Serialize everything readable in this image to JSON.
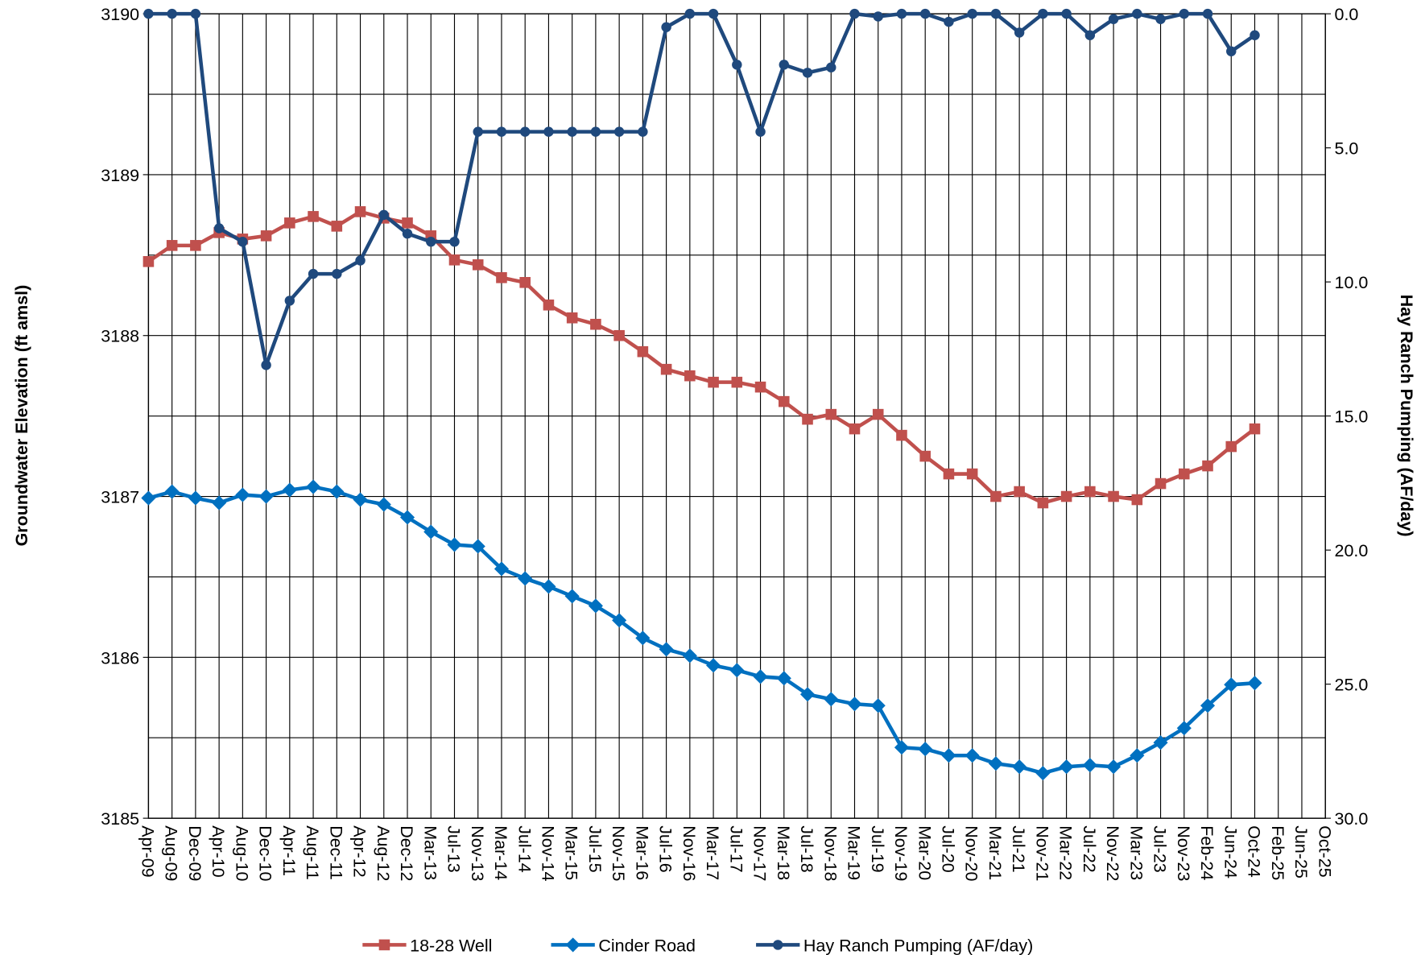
{
  "chart_data": {
    "type": "line",
    "ylabel": "Groundwater Elevation (ft amsl)",
    "y2label": "Hay Ranch Pumping (AF/day)",
    "categories": [
      "Apr-09",
      "Aug-09",
      "Dec-09",
      "Apr-10",
      "Aug-10",
      "Dec-10",
      "Apr-11",
      "Aug-11",
      "Dec-11",
      "Apr-12",
      "Aug-12",
      "Dec-12",
      "Mar-13",
      "Jul-13",
      "Nov-13",
      "Mar-14",
      "Jul-14",
      "Nov-14",
      "Mar-15",
      "Jul-15",
      "Nov-15",
      "Mar-16",
      "Jul-16",
      "Nov-16",
      "Mar-17",
      "Jul-17",
      "Nov-17",
      "Mar-18",
      "Jul-18",
      "Nov-18",
      "Mar-19",
      "Jul-19",
      "Nov-19",
      "Mar-20",
      "Jul-20",
      "Nov-20",
      "Mar-21",
      "Jul-21",
      "Nov-21",
      "Mar-22",
      "Jul-22",
      "Nov-22",
      "Mar-23",
      "Jul-23",
      "Nov-23",
      "Feb-24",
      "Jun-24",
      "Oct-24",
      "Feb-25",
      "Jun-25",
      "Oct-25"
    ],
    "series": [
      {
        "name": "18-28 Well",
        "color": "#c0504d",
        "marker": "square",
        "values": [
          3188.46,
          3188.56,
          3188.56,
          3188.64,
          3188.6,
          3188.62,
          3188.7,
          3188.74,
          3188.68,
          3188.77,
          3188.73,
          3188.7,
          3188.62,
          3188.47,
          3188.44,
          3188.36,
          3188.33,
          3188.19,
          3188.11,
          3188.07,
          3188.0,
          3187.9,
          3187.79,
          3187.75,
          3187.71,
          3187.71,
          3187.68,
          3187.59,
          3187.48,
          3187.51,
          3187.42,
          3187.51,
          3187.38,
          3187.25,
          3187.14,
          3187.14,
          3187.0,
          3187.03,
          3186.96,
          3187.0,
          3187.03,
          3187.0,
          3186.98,
          3187.08,
          3187.14,
          3187.19,
          3187.31,
          3187.42,
          null,
          null,
          null
        ]
      },
      {
        "name": "Cinder Road",
        "color": "#0070c0",
        "marker": "diamond",
        "values": [
          3186.99,
          3187.03,
          3186.99,
          3186.96,
          3187.01,
          3187.0,
          3187.04,
          3187.06,
          3187.03,
          3186.98,
          3186.95,
          3186.87,
          3186.78,
          3186.7,
          3186.69,
          3186.55,
          3186.49,
          3186.44,
          3186.38,
          3186.32,
          3186.23,
          3186.12,
          3186.05,
          3186.01,
          3185.95,
          3185.92,
          3185.88,
          3185.87,
          3185.77,
          3185.74,
          3185.71,
          3185.7,
          3185.44,
          3185.43,
          3185.39,
          3185.39,
          3185.34,
          3185.32,
          3185.28,
          3185.32,
          3185.33,
          3185.32,
          3185.39,
          3185.47,
          3185.56,
          3185.7,
          3185.83,
          3185.84,
          null,
          null,
          null
        ]
      },
      {
        "name": "Hay Ranch Pumping (AF/day)",
        "color": "#1f497d",
        "marker": "circle",
        "axis": "y2",
        "values": [
          0,
          0,
          0,
          8.0,
          8.5,
          13.1,
          10.7,
          9.7,
          9.7,
          9.2,
          7.5,
          8.2,
          8.5,
          8.5,
          4.4,
          4.4,
          4.4,
          4.4,
          4.4,
          4.4,
          4.4,
          4.4,
          0.5,
          0,
          0,
          1.9,
          4.4,
          1.9,
          2.2,
          2.0,
          0,
          0.1,
          0,
          0,
          0.3,
          0,
          0,
          0.7,
          0,
          0,
          0.8,
          0.2,
          0,
          0.2,
          0,
          0,
          1.4,
          0.8,
          null,
          null,
          null
        ]
      }
    ],
    "ylim": [
      3185,
      3190
    ],
    "yticks": [
      3185,
      3186,
      3187,
      3188,
      3189,
      3190
    ],
    "ygrid": [
      3185,
      3185.5,
      3186,
      3186.5,
      3187,
      3187.5,
      3188,
      3188.5,
      3189,
      3189.5,
      3190
    ],
    "y2lim": [
      0,
      30
    ],
    "y2_inverted": true,
    "y2ticks": [
      {
        "value": 0,
        "label": "0.0"
      },
      {
        "value": 5,
        "label": "5.0"
      },
      {
        "value": 10,
        "label": "10.0"
      },
      {
        "value": 15,
        "label": "15.0"
      },
      {
        "value": 20,
        "label": "20.0"
      },
      {
        "value": 25,
        "label": "25.0"
      },
      {
        "value": 30,
        "label": "30.0"
      }
    ],
    "grid": true,
    "legend": "bottom"
  }
}
